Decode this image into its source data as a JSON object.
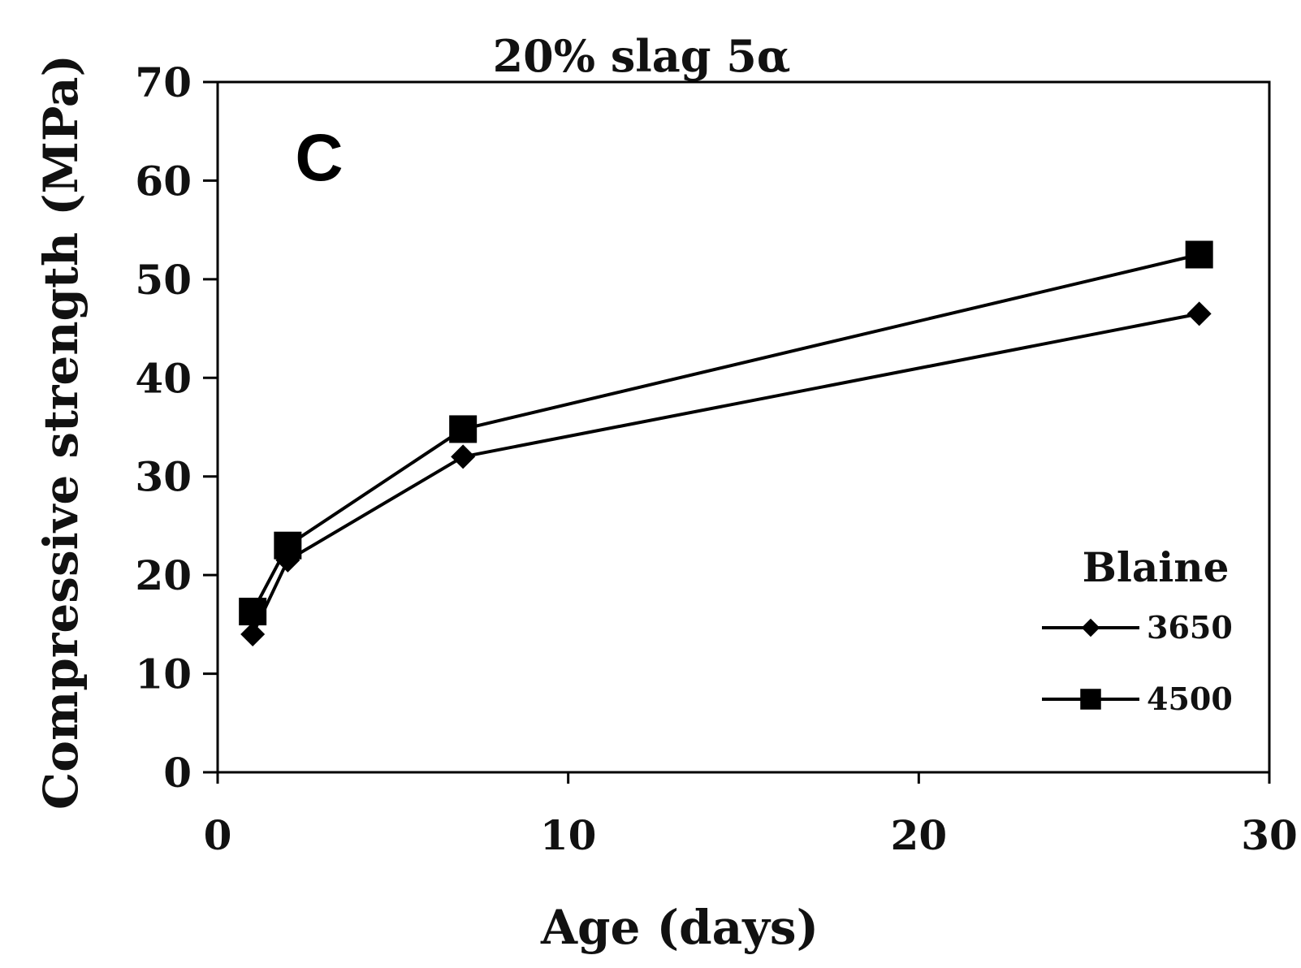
{
  "chart_data": {
    "type": "line",
    "title": "20% slag 5α",
    "panel_label": "C",
    "xlabel": "Age (days)",
    "ylabel": "Compressive strength (MPa)",
    "xlim": [
      0,
      30
    ],
    "ylim": [
      0,
      70
    ],
    "xticks": [
      0,
      10,
      20,
      30
    ],
    "yticks": [
      0,
      10,
      20,
      30,
      40,
      50,
      60,
      70
    ],
    "grid": false,
    "legend": {
      "title": "Blaine",
      "position": "bottom-right"
    },
    "series": [
      {
        "name": "3650",
        "marker": "diamond",
        "x": [
          1,
          2,
          7,
          28
        ],
        "y": [
          14.0,
          21.5,
          32.0,
          46.5
        ]
      },
      {
        "name": "4500",
        "marker": "square",
        "x": [
          1,
          2,
          7,
          28
        ],
        "y": [
          16.3,
          23.0,
          34.8,
          52.5
        ]
      }
    ],
    "color": "#000000"
  }
}
